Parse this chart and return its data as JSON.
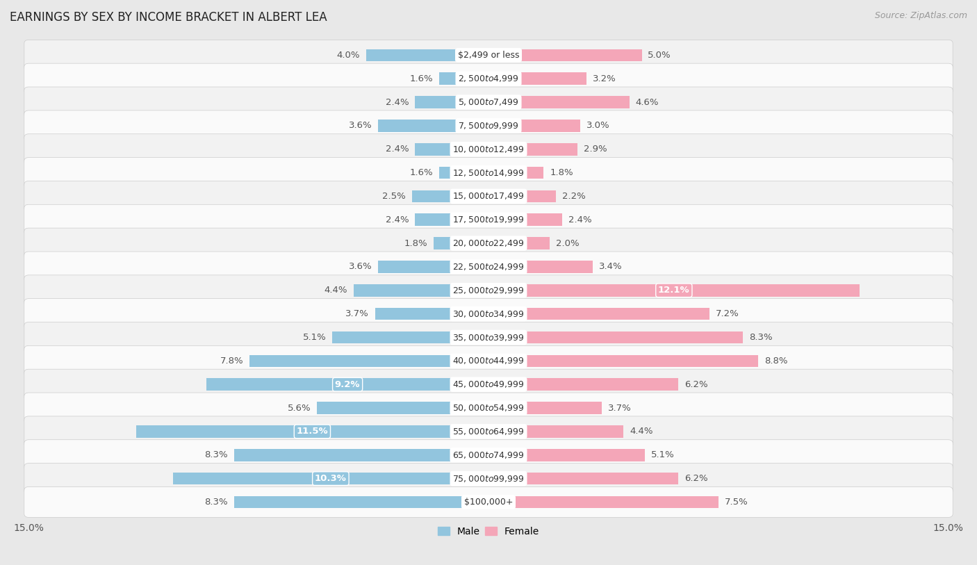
{
  "title": "EARNINGS BY SEX BY INCOME BRACKET IN ALBERT LEA",
  "source": "Source: ZipAtlas.com",
  "categories": [
    "$2,499 or less",
    "$2,500 to $4,999",
    "$5,000 to $7,499",
    "$7,500 to $9,999",
    "$10,000 to $12,499",
    "$12,500 to $14,999",
    "$15,000 to $17,499",
    "$17,500 to $19,999",
    "$20,000 to $22,499",
    "$22,500 to $24,999",
    "$25,000 to $29,999",
    "$30,000 to $34,999",
    "$35,000 to $39,999",
    "$40,000 to $44,999",
    "$45,000 to $49,999",
    "$50,000 to $54,999",
    "$55,000 to $64,999",
    "$65,000 to $74,999",
    "$75,000 to $99,999",
    "$100,000+"
  ],
  "male_values": [
    4.0,
    1.6,
    2.4,
    3.6,
    2.4,
    1.6,
    2.5,
    2.4,
    1.8,
    3.6,
    4.4,
    3.7,
    5.1,
    7.8,
    9.2,
    5.6,
    11.5,
    8.3,
    10.3,
    8.3
  ],
  "female_values": [
    5.0,
    3.2,
    4.6,
    3.0,
    2.9,
    1.8,
    2.2,
    2.4,
    2.0,
    3.4,
    12.1,
    7.2,
    8.3,
    8.8,
    6.2,
    3.7,
    4.4,
    5.1,
    6.2,
    7.5
  ],
  "male_color": "#92c5de",
  "female_color": "#f4a6b8",
  "highlight_male": [
    14,
    16,
    18
  ],
  "highlight_female": [
    10
  ],
  "row_colors": [
    "#f5f5f5",
    "#ffffff"
  ],
  "bar_row_color": "#e8edf2",
  "xlim": 15.0,
  "legend_male": "Male",
  "legend_female": "Female",
  "value_fontsize": 9.5,
  "category_fontsize": 9.0,
  "title_fontsize": 12,
  "source_fontsize": 9
}
